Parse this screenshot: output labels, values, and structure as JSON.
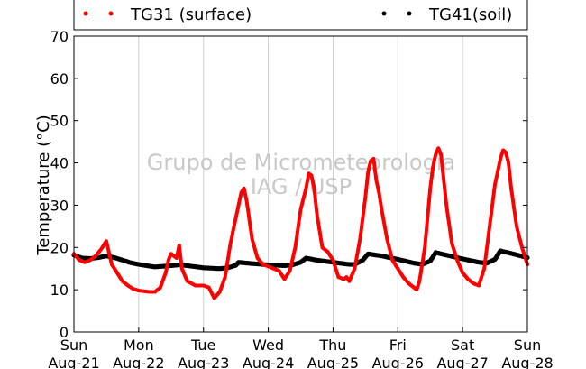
{
  "chart_data": {
    "type": "scatter",
    "ylabel": "Temperature (°C)",
    "ylim": [
      0,
      70
    ],
    "yticks": [
      "0",
      "10",
      "20",
      "30",
      "40",
      "50",
      "60",
      "70"
    ],
    "xlim": [
      "Aug-21 00:00",
      "Aug-28 00:00"
    ],
    "xticks": [
      {
        "day": "Sun",
        "date": "Aug-21"
      },
      {
        "day": "Mon",
        "date": "Aug-22"
      },
      {
        "day": "Tue",
        "date": "Aug-23"
      },
      {
        "day": "Wed",
        "date": "Aug-24"
      },
      {
        "day": "Thu",
        "date": "Aug-25"
      },
      {
        "day": "Fri",
        "date": "Aug-26"
      },
      {
        "day": "Sat",
        "date": "Aug-27"
      },
      {
        "day": "Sun",
        "date": "Aug-28"
      }
    ],
    "grid": "vertical",
    "legend_position": "top",
    "watermark": [
      "Grupo de Micrometeorologia",
      "IAG / USP"
    ],
    "series": [
      {
        "name": "TG31 (surface)",
        "color": "#ff0000",
        "points": [
          [
            "Aug-21 00:00",
            18.5
          ],
          [
            "Aug-21 02:00",
            17.0
          ],
          [
            "Aug-21 04:00",
            16.5
          ],
          [
            "Aug-21 06:00",
            17.0
          ],
          [
            "Aug-21 08:00",
            18.0
          ],
          [
            "Aug-21 10:00",
            19.5
          ],
          [
            "Aug-21 12:00",
            21.5
          ],
          [
            "Aug-21 14:00",
            16.0
          ],
          [
            "Aug-21 16:00",
            14.0
          ],
          [
            "Aug-21 18:00",
            12.0
          ],
          [
            "Aug-21 20:00",
            11.0
          ],
          [
            "Aug-21 22:00",
            10.2
          ],
          [
            "Aug-22 00:00",
            9.8
          ],
          [
            "Aug-22 04:00",
            9.5
          ],
          [
            "Aug-22 06:00",
            9.5
          ],
          [
            "Aug-22 08:00",
            10.5
          ],
          [
            "Aug-22 10:00",
            14.0
          ],
          [
            "Aug-22 11:00",
            17.0
          ],
          [
            "Aug-22 12:00",
            18.5
          ],
          [
            "Aug-22 13:00",
            18.0
          ],
          [
            "Aug-22 14:00",
            17.5
          ],
          [
            "Aug-22 15:00",
            20.5
          ],
          [
            "Aug-22 16:00",
            15.0
          ],
          [
            "Aug-22 18:00",
            12.0
          ],
          [
            "Aug-22 21:00",
            11.0
          ],
          [
            "Aug-23 00:00",
            11.0
          ],
          [
            "Aug-23 02:00",
            10.5
          ],
          [
            "Aug-23 04:00",
            8.0
          ],
          [
            "Aug-23 06:00",
            9.5
          ],
          [
            "Aug-23 08:00",
            13.0
          ],
          [
            "Aug-23 10:00",
            21.0
          ],
          [
            "Aug-23 12:00",
            27.0
          ],
          [
            "Aug-23 14:00",
            33.0
          ],
          [
            "Aug-23 15:00",
            34.0
          ],
          [
            "Aug-23 16:00",
            31.0
          ],
          [
            "Aug-23 18:00",
            22.0
          ],
          [
            "Aug-23 20:00",
            17.5
          ],
          [
            "Aug-23 22:00",
            16.0
          ],
          [
            "Aug-24 00:00",
            15.5
          ],
          [
            "Aug-24 02:00",
            15.0
          ],
          [
            "Aug-24 04:00",
            14.5
          ],
          [
            "Aug-24 06:00",
            12.5
          ],
          [
            "Aug-24 08:00",
            14.5
          ],
          [
            "Aug-24 10:00",
            20.0
          ],
          [
            "Aug-24 12:00",
            29.0
          ],
          [
            "Aug-24 14:00",
            34.0
          ],
          [
            "Aug-24 15:00",
            37.5
          ],
          [
            "Aug-24 16:00",
            37.0
          ],
          [
            "Aug-24 17:00",
            34.0
          ],
          [
            "Aug-24 18:00",
            28.0
          ],
          [
            "Aug-24 20:00",
            20.0
          ],
          [
            "Aug-24 22:00",
            19.0
          ],
          [
            "Aug-25 00:00",
            17.0
          ],
          [
            "Aug-25 02:00",
            13.0
          ],
          [
            "Aug-25 04:00",
            12.5
          ],
          [
            "Aug-25 05:00",
            13.0
          ],
          [
            "Aug-25 06:00",
            12.0
          ],
          [
            "Aug-25 07:00",
            13.5
          ],
          [
            "Aug-25 08:00",
            15.0
          ],
          [
            "Aug-25 10:00",
            22.0
          ],
          [
            "Aug-25 12:00",
            32.0
          ],
          [
            "Aug-25 13:00",
            38.0
          ],
          [
            "Aug-25 14:00",
            40.5
          ],
          [
            "Aug-25 15:00",
            41.0
          ],
          [
            "Aug-25 16:00",
            36.0
          ],
          [
            "Aug-25 17:00",
            33.0
          ],
          [
            "Aug-25 18:00",
            29.0
          ],
          [
            "Aug-25 20:00",
            22.0
          ],
          [
            "Aug-25 22:00",
            17.0
          ],
          [
            "Aug-26 00:00",
            15.0
          ],
          [
            "Aug-26 02:00",
            13.0
          ],
          [
            "Aug-26 04:00",
            11.5
          ],
          [
            "Aug-26 06:00",
            10.5
          ],
          [
            "Aug-26 07:00",
            10.0
          ],
          [
            "Aug-26 08:00",
            12.0
          ],
          [
            "Aug-26 10:00",
            20.0
          ],
          [
            "Aug-26 12:00",
            34.0
          ],
          [
            "Aug-26 13:00",
            39.0
          ],
          [
            "Aug-26 14:00",
            42.0
          ],
          [
            "Aug-26 15:00",
            43.5
          ],
          [
            "Aug-26 16:00",
            42.0
          ],
          [
            "Aug-26 18:00",
            30.0
          ],
          [
            "Aug-26 20:00",
            21.0
          ],
          [
            "Aug-26 22:00",
            17.0
          ],
          [
            "Aug-27 00:00",
            14.0
          ],
          [
            "Aug-27 02:00",
            12.5
          ],
          [
            "Aug-27 04:00",
            11.5
          ],
          [
            "Aug-27 06:00",
            11.0
          ],
          [
            "Aug-27 08:00",
            15.0
          ],
          [
            "Aug-27 10:00",
            25.0
          ],
          [
            "Aug-27 12:00",
            35.0
          ],
          [
            "Aug-27 14:00",
            41.0
          ],
          [
            "Aug-27 15:00",
            43.0
          ],
          [
            "Aug-27 16:00",
            42.5
          ],
          [
            "Aug-27 17:00",
            40.0
          ],
          [
            "Aug-27 18:00",
            34.0
          ],
          [
            "Aug-27 20:00",
            25.0
          ],
          [
            "Aug-27 22:00",
            20.0
          ],
          [
            "Aug-28 00:00",
            16.0
          ]
        ]
      },
      {
        "name": "TG41(soil)",
        "color": "#000000",
        "points": [
          [
            "Aug-21 00:00",
            18.2
          ],
          [
            "Aug-21 03:00",
            17.5
          ],
          [
            "Aug-21 06:00",
            17.4
          ],
          [
            "Aug-21 09:00",
            17.6
          ],
          [
            "Aug-21 12:00",
            18.0
          ],
          [
            "Aug-21 15:00",
            17.6
          ],
          [
            "Aug-21 18:00",
            17.0
          ],
          [
            "Aug-21 21:00",
            16.4
          ],
          [
            "Aug-22 00:00",
            16.0
          ],
          [
            "Aug-22 06:00",
            15.4
          ],
          [
            "Aug-22 12:00",
            15.7
          ],
          [
            "Aug-22 15:00",
            15.9
          ],
          [
            "Aug-22 18:00",
            15.7
          ],
          [
            "Aug-23 00:00",
            15.2
          ],
          [
            "Aug-23 06:00",
            15.0
          ],
          [
            "Aug-23 09:00",
            15.2
          ],
          [
            "Aug-23 12:00",
            15.8
          ],
          [
            "Aug-23 13:00",
            16.5
          ],
          [
            "Aug-23 18:00",
            16.2
          ],
          [
            "Aug-24 00:00",
            15.9
          ],
          [
            "Aug-24 06:00",
            15.7
          ],
          [
            "Aug-24 09:00",
            15.9
          ],
          [
            "Aug-24 12:00",
            16.5
          ],
          [
            "Aug-24 14:00",
            17.5
          ],
          [
            "Aug-24 18:00",
            17.0
          ],
          [
            "Aug-25 00:00",
            16.5
          ],
          [
            "Aug-25 06:00",
            16.0
          ],
          [
            "Aug-25 08:00",
            16.0
          ],
          [
            "Aug-25 11:00",
            17.0
          ],
          [
            "Aug-25 13:00",
            18.5
          ],
          [
            "Aug-25 18:00",
            18.0
          ],
          [
            "Aug-26 00:00",
            17.2
          ],
          [
            "Aug-26 06:00",
            16.3
          ],
          [
            "Aug-26 09:00",
            16.0
          ],
          [
            "Aug-26 12:00",
            16.8
          ],
          [
            "Aug-26 14:00",
            18.8
          ],
          [
            "Aug-26 18:00",
            18.2
          ],
          [
            "Aug-27 00:00",
            17.3
          ],
          [
            "Aug-27 06:00",
            16.5
          ],
          [
            "Aug-27 09:00",
            16.3
          ],
          [
            "Aug-27 12:00",
            17.2
          ],
          [
            "Aug-27 14:00",
            19.2
          ],
          [
            "Aug-27 18:00",
            18.6
          ],
          [
            "Aug-28 00:00",
            17.6
          ]
        ]
      }
    ]
  }
}
